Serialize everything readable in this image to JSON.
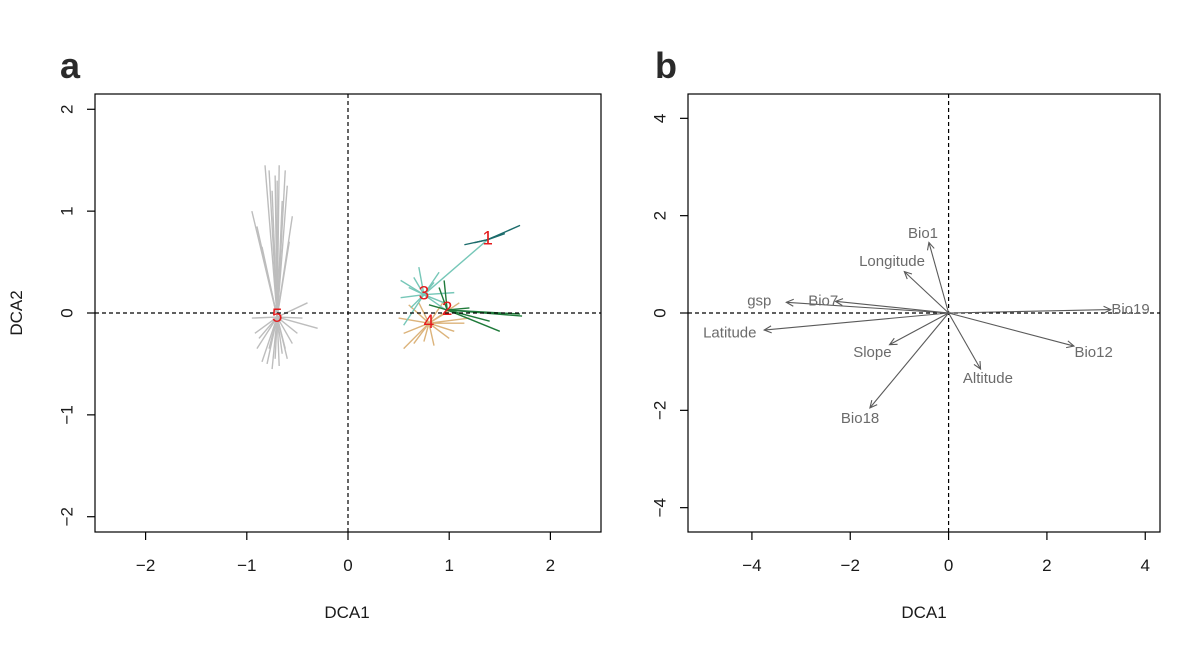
{
  "panels": {
    "a": {
      "letter": "a"
    },
    "b": {
      "letter": "b"
    }
  },
  "chart_data": [
    {
      "type": "scatter",
      "panel": "a",
      "title": "",
      "xlabel": "DCA1",
      "ylabel": "DCA2",
      "xlim": [
        -2.5,
        2.5
      ],
      "ylim": [
        -2.15,
        2.15
      ],
      "xticks": [
        -2,
        -1,
        0,
        1,
        2
      ],
      "yticks": [
        -2,
        -1,
        0,
        1,
        2
      ],
      "xtick_labels": [
        "−2",
        "−1",
        "0",
        "1",
        "2"
      ],
      "ytick_labels": [
        "−2",
        "−1",
        "0",
        "1",
        "2"
      ],
      "reference_lines": {
        "x": 0,
        "y": 0,
        "style": "dashed"
      },
      "clusters": [
        {
          "label": "1",
          "centroid": [
            1.38,
            0.72
          ],
          "color": "#1b6b6b",
          "spokes": [
            [
              1.7,
              0.86
            ],
            [
              1.15,
              0.67
            ],
            [
              1.25,
              0.69
            ],
            [
              1.55,
              0.78
            ],
            [
              1.45,
              0.75
            ]
          ]
        },
        {
          "label": "2",
          "centroid": [
            0.98,
            0.03
          ],
          "color": "#1f7a3a",
          "spokes": [
            [
              0.95,
              0.32
            ],
            [
              1.5,
              -0.18
            ],
            [
              1.7,
              -0.01
            ],
            [
              1.72,
              -0.03
            ],
            [
              1.4,
              -0.08
            ],
            [
              1.2,
              0.05
            ],
            [
              0.8,
              0.08
            ],
            [
              0.9,
              0.25
            ]
          ]
        },
        {
          "label": "3",
          "centroid": [
            0.75,
            0.18
          ],
          "color": "#76c7b8",
          "spokes": [
            [
              1.38,
              0.72
            ],
            [
              0.52,
              0.32
            ],
            [
              0.52,
              0.15
            ],
            [
              0.55,
              -0.12
            ],
            [
              0.7,
              0.45
            ],
            [
              0.98,
              0.02
            ],
            [
              0.9,
              0.4
            ],
            [
              0.6,
              0.25
            ],
            [
              1.05,
              0.2
            ],
            [
              0.95,
              0.1
            ],
            [
              0.65,
              0.35
            ],
            [
              0.85,
              0.3
            ],
            [
              0.62,
              0.05
            ]
          ]
        },
        {
          "label": "4",
          "centroid": [
            0.8,
            -0.1
          ],
          "color": "#dcb37a",
          "spokes": [
            [
              0.55,
              -0.35
            ],
            [
              1.15,
              -0.1
            ],
            [
              0.5,
              -0.05
            ],
            [
              1.1,
              0.1
            ],
            [
              0.6,
              0.08
            ],
            [
              0.65,
              -0.3
            ],
            [
              1.0,
              -0.25
            ],
            [
              1.2,
              -0.05
            ],
            [
              0.7,
              0.1
            ],
            [
              0.95,
              0.12
            ],
            [
              0.55,
              -0.2
            ],
            [
              1.05,
              -0.18
            ],
            [
              0.85,
              -0.32
            ],
            [
              0.75,
              -0.28
            ],
            [
              1.0,
              0.02
            ]
          ]
        },
        {
          "label": "5",
          "centroid": [
            -0.7,
            -0.04
          ],
          "color": "#bdbdbd",
          "spokes": [
            [
              -0.95,
              1.0
            ],
            [
              -0.9,
              0.85
            ],
            [
              -0.82,
              1.45
            ],
            [
              -0.78,
              1.4
            ],
            [
              -0.75,
              1.2
            ],
            [
              -0.72,
              1.35
            ],
            [
              -0.7,
              1.3
            ],
            [
              -0.68,
              1.45
            ],
            [
              -0.65,
              1.1
            ],
            [
              -0.62,
              1.4
            ],
            [
              -0.6,
              1.25
            ],
            [
              -0.55,
              0.95
            ],
            [
              -0.85,
              0.65
            ],
            [
              -0.58,
              0.7
            ],
            [
              -0.4,
              0.1
            ],
            [
              -0.3,
              -0.15
            ],
            [
              -0.45,
              -0.05
            ],
            [
              -0.9,
              -0.35
            ],
            [
              -0.85,
              -0.48
            ],
            [
              -0.8,
              -0.5
            ],
            [
              -0.75,
              -0.55
            ],
            [
              -0.72,
              -0.45
            ],
            [
              -0.68,
              -0.52
            ],
            [
              -0.65,
              -0.4
            ],
            [
              -0.6,
              -0.45
            ],
            [
              -0.55,
              -0.3
            ],
            [
              -0.92,
              -0.2
            ],
            [
              -0.88,
              -0.25
            ],
            [
              -0.5,
              -0.2
            ],
            [
              -0.95,
              -0.05
            ],
            [
              -0.78,
              -0.35
            ],
            [
              -0.62,
              -0.35
            ]
          ]
        }
      ]
    },
    {
      "type": "scatter",
      "panel": "b",
      "title": "",
      "xlabel": "DCA1",
      "ylabel": "",
      "xlim": [
        -5.3,
        4.3
      ],
      "ylim": [
        -4.5,
        4.5
      ],
      "xticks": [
        -4,
        -2,
        0,
        2,
        4
      ],
      "yticks": [
        -4,
        -2,
        0,
        2,
        4
      ],
      "xtick_labels": [
        "−4",
        "−2",
        "0",
        "2",
        "4"
      ],
      "ytick_labels": [
        "−4",
        "−2",
        "0",
        "2",
        "4"
      ],
      "reference_lines": {
        "x": 0,
        "y": 0,
        "style": "dashed"
      },
      "vectors": [
        {
          "name": "Bio1",
          "x": -0.4,
          "y": 1.45,
          "label_x": -0.52,
          "label_y": 1.62
        },
        {
          "name": "Longitude",
          "x": -0.9,
          "y": 0.85,
          "label_x": -1.15,
          "label_y": 1.05
        },
        {
          "name": "gsp",
          "x": -3.3,
          "y": 0.22,
          "label_x": -3.85,
          "label_y": 0.24
        },
        {
          "name": "Bio7",
          "x": -2.3,
          "y": 0.24,
          "label_x": -2.55,
          "label_y": 0.24
        },
        {
          "name": "Latitude",
          "x": -3.75,
          "y": -0.35,
          "label_x": -4.45,
          "label_y": -0.42
        },
        {
          "name": "Slope",
          "x": -1.2,
          "y": -0.65,
          "label_x": -1.55,
          "label_y": -0.82
        },
        {
          "name": "Bio18",
          "x": -1.6,
          "y": -1.95,
          "label_x": -1.8,
          "label_y": -2.18
        },
        {
          "name": "Altitude",
          "x": 0.65,
          "y": -1.15,
          "label_x": 0.8,
          "label_y": -1.36
        },
        {
          "name": "Bio12",
          "x": 2.55,
          "y": -0.68,
          "label_x": 2.95,
          "label_y": -0.82
        },
        {
          "name": "Bio19",
          "x": 3.3,
          "y": 0.07,
          "label_x": 3.7,
          "label_y": 0.06
        }
      ]
    }
  ]
}
